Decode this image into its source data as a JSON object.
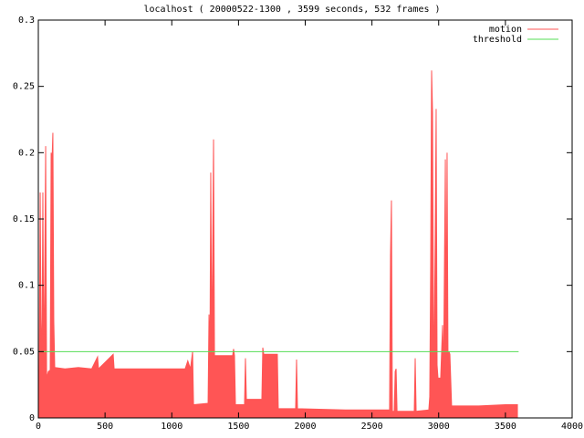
{
  "chart_data": {
    "type": "area",
    "title": "localhost ( 20000522-1300 , 3599 seconds, 532 frames )",
    "xlim": [
      0,
      4000
    ],
    "xticks": [
      0,
      500,
      1000,
      1500,
      2000,
      2500,
      3000,
      3500,
      4000
    ],
    "ylim": [
      0,
      0.3
    ],
    "yticks": [
      0,
      0.05,
      0.1,
      0.15,
      0.2,
      0.25,
      0.3
    ],
    "legend": "top-right",
    "series": [
      {
        "name": "motion",
        "color": "#ff5555",
        "style": "area",
        "x": [
          0,
          7,
          14,
          20,
          27,
          34,
          41,
          48,
          55,
          62,
          75,
          89,
          96,
          103,
          109,
          116,
          123,
          200,
          300,
          400,
          444,
          451,
          561,
          568,
          700,
          900,
          1100,
          1120,
          1140,
          1156,
          1163,
          1272,
          1279,
          1286,
          1292,
          1300,
          1313,
          1320,
          1456,
          1463,
          1470,
          1477,
          1545,
          1552,
          1559,
          1675,
          1682,
          1689,
          1791,
          1798,
          1928,
          1935,
          1942,
          2300,
          2632,
          2639,
          2646,
          2653,
          2667,
          2674,
          2681,
          2688,
          2817,
          2824,
          2831,
          2926,
          2933,
          2940,
          2947,
          2954,
          2961,
          2967,
          2974,
          2981,
          2988,
          2995,
          3015,
          3029,
          3036,
          3050,
          3056,
          3063,
          3070,
          3077,
          3084,
          3097,
          3300,
          3500,
          3590
        ],
        "values": [
          0.03,
          0.036,
          0.17,
          0.075,
          0.04,
          0.17,
          0.035,
          0.11,
          0.205,
          0.03,
          0.035,
          0.036,
          0.2,
          0.195,
          0.215,
          0.073,
          0.038,
          0.037,
          0.038,
          0.037,
          0.046,
          0.037,
          0.048,
          0.037,
          0.037,
          0.037,
          0.037,
          0.043,
          0.037,
          0.05,
          0.01,
          0.011,
          0.078,
          0.047,
          0.185,
          0.047,
          0.21,
          0.047,
          0.047,
          0.052,
          0.047,
          0.01,
          0.01,
          0.045,
          0.014,
          0.014,
          0.053,
          0.048,
          0.048,
          0.007,
          0.007,
          0.044,
          0.007,
          0.006,
          0.006,
          0.123,
          0.164,
          0.005,
          0.005,
          0.035,
          0.037,
          0.005,
          0.005,
          0.045,
          0.005,
          0.006,
          0.016,
          0.115,
          0.262,
          0.23,
          0.07,
          0.06,
          0.135,
          0.233,
          0.04,
          0.03,
          0.03,
          0.07,
          0.03,
          0.195,
          0.05,
          0.2,
          0.04,
          0.05,
          0.048,
          0.009,
          0.009,
          0.01,
          0.01
        ]
      },
      {
        "name": "threshold",
        "color": "#55dd55",
        "style": "line",
        "x": [
          0,
          3599
        ],
        "values": [
          0.05,
          0.05
        ]
      }
    ]
  }
}
